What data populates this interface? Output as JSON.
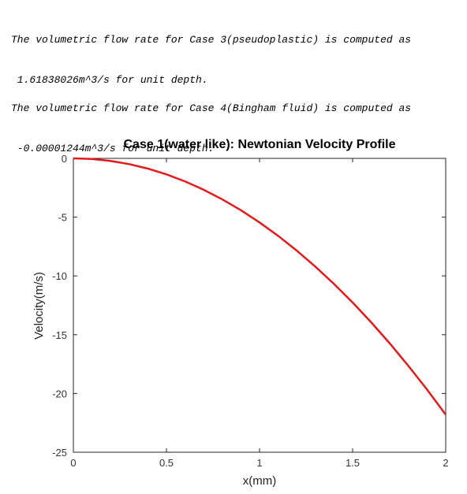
{
  "outputs": [
    {
      "lines": [
        "The volumetric flow rate for Case 3(pseudoplastic) is computed as",
        " 1.61838026m^3/s for unit depth."
      ]
    },
    {
      "lines": [
        "The volumetric flow rate for Case 4(Bingham fluid) is computed as",
        " -0.00001244m^3/s for unit depth."
      ]
    }
  ],
  "chart_data": {
    "type": "line",
    "title": "Case 1(water like): Newtonian Velocity Profile",
    "x_label": "x(mm)",
    "y_label": "Velocity(m/s)",
    "x": [
      0,
      0.1,
      0.2,
      0.3,
      0.4,
      0.5,
      0.6,
      0.7,
      0.8,
      0.9,
      1,
      1.1,
      1.2,
      1.3,
      1.4,
      1.5,
      1.6,
      1.7,
      1.8,
      1.9,
      2
    ],
    "values": [
      0,
      -0.05,
      -0.22,
      -0.49,
      -0.87,
      -1.36,
      -1.96,
      -2.67,
      -3.49,
      -4.41,
      -5.45,
      -6.59,
      -7.85,
      -9.21,
      -10.68,
      -12.26,
      -13.95,
      -15.75,
      -17.66,
      -19.67,
      -21.8
    ],
    "color": "#e31a1c",
    "xlim": [
      0,
      2
    ],
    "xticks": [
      0,
      0.5,
      1,
      1.5,
      2
    ],
    "ylim": [
      -25,
      0
    ],
    "yticks": [
      -25,
      -20,
      -15,
      -10,
      -5,
      0
    ]
  }
}
